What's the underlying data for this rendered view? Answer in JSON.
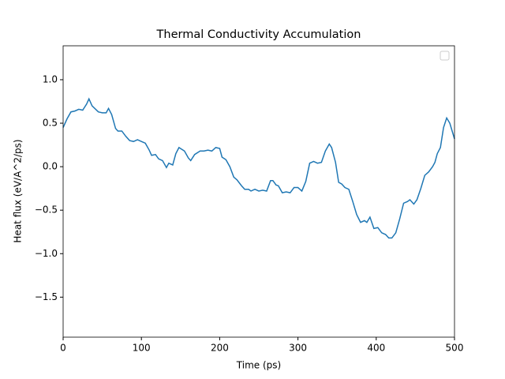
{
  "chart_data": {
    "type": "line",
    "title": "Thermal Conductivity Accumulation",
    "x_label": "Time (ps)",
    "y_label": "Heat flux (eV/A^2/ps)",
    "xlim": [
      0,
      500
    ],
    "ylim": [
      -1.96,
      1.39
    ],
    "xticks": [
      0,
      100,
      200,
      300,
      400,
      500
    ],
    "yticks": [
      {
        "value": -1.5,
        "label": "−1.5"
      },
      {
        "value": -1.0,
        "label": "−1.0"
      },
      {
        "value": -0.5,
        "label": "−0.5"
      },
      {
        "value": 0.0,
        "label": "0.0"
      },
      {
        "value": 0.5,
        "label": "0.5"
      },
      {
        "value": 1.0,
        "label": "1.0"
      }
    ],
    "legend": "upper right",
    "x": [
      0,
      5,
      10,
      15,
      20,
      25,
      30,
      33,
      37,
      45,
      50,
      55,
      58,
      62,
      67,
      70,
      75,
      80,
      85,
      90,
      95,
      100,
      105,
      110,
      113,
      118,
      122,
      127,
      132,
      135,
      140,
      144,
      148,
      155,
      160,
      163,
      168,
      175,
      180,
      185,
      190,
      195,
      200,
      203,
      208,
      213,
      218,
      222,
      228,
      232,
      237,
      240,
      245,
      250,
      255,
      260,
      265,
      268,
      272,
      275,
      280,
      285,
      290,
      295,
      300,
      305,
      310,
      315,
      320,
      325,
      330,
      335,
      340,
      343,
      348,
      352,
      356,
      360,
      365,
      370,
      375,
      380,
      385,
      388,
      392,
      397,
      402,
      407,
      412,
      416,
      420,
      425,
      430,
      435,
      440,
      443,
      448,
      452,
      457,
      462,
      467,
      472,
      475,
      478,
      482,
      486,
      490,
      494,
      498,
      500
    ],
    "series": [
      {
        "color": "#1f77b4",
        "values": [
          0.45,
          0.55,
          0.63,
          0.64,
          0.66,
          0.65,
          0.72,
          0.78,
          0.7,
          0.63,
          0.62,
          0.62,
          0.67,
          0.6,
          0.44,
          0.41,
          0.41,
          0.35,
          0.3,
          0.29,
          0.31,
          0.29,
          0.27,
          0.19,
          0.13,
          0.14,
          0.09,
          0.07,
          -0.01,
          0.04,
          0.02,
          0.15,
          0.22,
          0.18,
          0.1,
          0.07,
          0.14,
          0.18,
          0.18,
          0.19,
          0.18,
          0.22,
          0.21,
          0.11,
          0.08,
          0.0,
          -0.12,
          -0.15,
          -0.22,
          -0.26,
          -0.26,
          -0.28,
          -0.26,
          -0.28,
          -0.27,
          -0.28,
          -0.16,
          -0.16,
          -0.21,
          -0.22,
          -0.3,
          -0.29,
          -0.3,
          -0.24,
          -0.24,
          -0.28,
          -0.17,
          0.04,
          0.06,
          0.04,
          0.05,
          0.18,
          0.26,
          0.22,
          0.05,
          -0.18,
          -0.2,
          -0.24,
          -0.26,
          -0.4,
          -0.55,
          -0.64,
          -0.62,
          -0.64,
          -0.58,
          -0.71,
          -0.7,
          -0.76,
          -0.78,
          -0.82,
          -0.82,
          -0.76,
          -0.6,
          -0.42,
          -0.4,
          -0.38,
          -0.43,
          -0.38,
          -0.25,
          -0.1,
          -0.06,
          0.0,
          0.05,
          0.15,
          0.22,
          0.45,
          0.56,
          0.5,
          0.38,
          0.32
        ]
      }
    ]
  }
}
